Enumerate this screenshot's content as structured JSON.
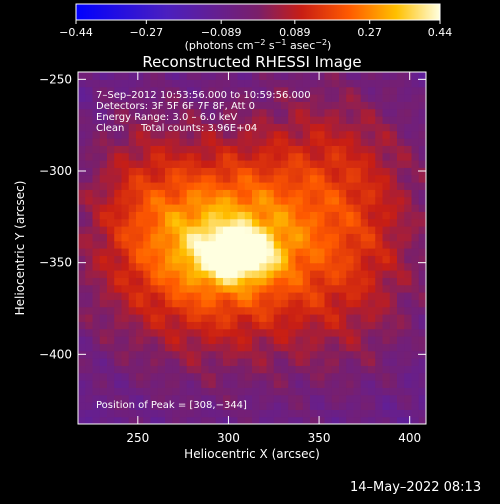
{
  "chart_data": {
    "type": "heatmap",
    "title": "Reconstructed RHESSI Image",
    "xlabel": "Heliocentric X (arcsec)",
    "ylabel": "Heliocentric Y (arcsec)",
    "xlim": [
      217,
      409
    ],
    "ylim": [
      -438,
      -246
    ],
    "x_ticks": [
      250,
      300,
      350,
      400
    ],
    "y_ticks": [
      -250,
      -300,
      -350,
      -400
    ],
    "colorbar": {
      "range": [
        -0.44,
        0.44
      ],
      "tick_values": [
        -0.44,
        -0.27,
        -0.089,
        0.089,
        0.27,
        0.44
      ],
      "tick_labels": [
        "−0.44",
        "−0.27",
        "−0.089",
        "0.089",
        "0.27",
        "0.44"
      ],
      "unit_prefix": "(photons cm",
      "unit_exp1": "−2",
      "unit_mid": " s",
      "unit_exp2": "−1",
      "unit_mid2": " asec",
      "unit_exp3": "−2",
      "unit_suffix": ")"
    },
    "annotations": {
      "time": "7–Sep–2012 10:53:56.000 to 10:59:56.000",
      "detectors": "Detectors: 3F 5F 6F 7F 8F, Att 0",
      "energy": "Energy Range: 3.0 – 6.0 keV",
      "clean": "Clean",
      "counts": "Total counts: 3.96E+04",
      "peak": "Position of Peak = [308,−344]"
    },
    "peak_position": [
      308,
      -344
    ],
    "peak_value": 0.44,
    "emission_components": [
      {
        "x": 305,
        "y": -345,
        "sx": 14,
        "sy": 9,
        "amp": 0.3
      },
      {
        "x": 295,
        "y": -338,
        "sx": 30,
        "sy": 28,
        "amp": 0.22
      },
      {
        "x": 290,
        "y": -345,
        "sx": 55,
        "sy": 50,
        "amp": 0.22
      },
      {
        "x": 360,
        "y": -300,
        "sx": 35,
        "sy": 40,
        "amp": 0.13
      },
      {
        "x": 370,
        "y": -355,
        "sx": 30,
        "sy": 45,
        "amp": 0.11
      },
      {
        "x": 250,
        "y": -310,
        "sx": 20,
        "sy": 35,
        "amp": 0.08
      }
    ],
    "background_level": -0.1
  },
  "footer": {
    "date": "14–May–2022 08:13"
  }
}
